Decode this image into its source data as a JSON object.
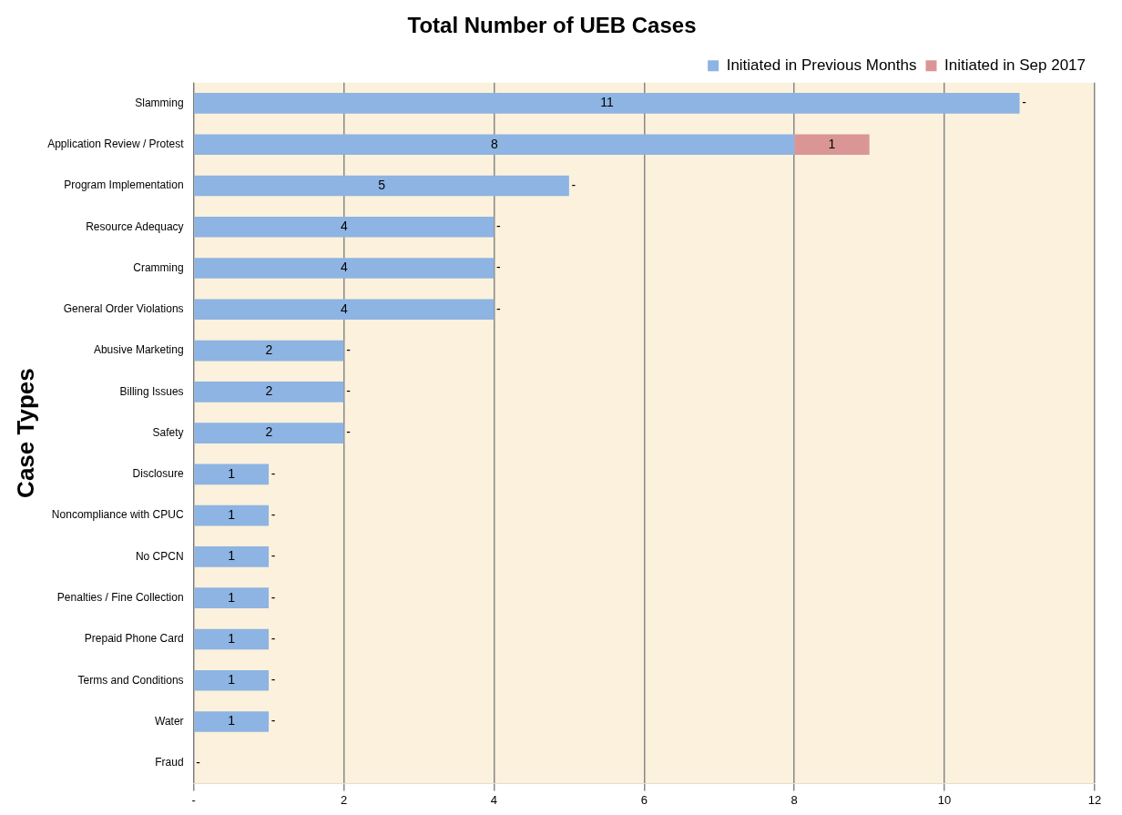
{
  "chart_data": {
    "type": "bar",
    "orientation": "horizontal",
    "stacked": true,
    "title": "Total Number of UEB Cases",
    "ylabel": "Case Types",
    "categories": [
      "Slamming",
      "Application Review / Protest",
      "Program Implementation",
      "Resource Adequacy",
      "Cramming",
      "General Order Violations",
      "Abusive Marketing",
      "Billing Issues",
      "Safety",
      "Disclosure",
      "Noncompliance with CPUC",
      "No CPCN",
      "Penalties / Fine Collection",
      "Prepaid Phone Card",
      "Terms and Conditions",
      "Water",
      "Fraud"
    ],
    "series": [
      {
        "name": "Initiated in Previous Months",
        "color": "#8db4e2",
        "values": [
          11,
          8,
          5,
          4,
          4,
          4,
          2,
          2,
          2,
          1,
          1,
          1,
          1,
          1,
          1,
          1,
          0
        ],
        "value_labels": [
          "11",
          "8",
          "5",
          "4",
          "4",
          "4",
          "2",
          "2",
          "2",
          "1",
          "1",
          "1",
          "1",
          "1",
          "1",
          "1",
          null
        ]
      },
      {
        "name": "Initiated in Sep 2017",
        "color": "#da9694",
        "values": [
          0,
          1,
          0,
          0,
          0,
          0,
          0,
          0,
          0,
          0,
          0,
          0,
          0,
          0,
          0,
          0,
          0
        ],
        "value_labels": [
          "-",
          "1",
          "-",
          "-",
          "-",
          "-",
          "-",
          "-",
          "-",
          "-",
          "-",
          "-",
          "-",
          "-",
          "-",
          "-",
          "-"
        ]
      }
    ],
    "xlim": [
      0,
      12
    ],
    "xticks": [
      {
        "value": 0,
        "label": "-"
      },
      2,
      4,
      6,
      8,
      10,
      12
    ],
    "grid": "x",
    "legend": "top right"
  }
}
